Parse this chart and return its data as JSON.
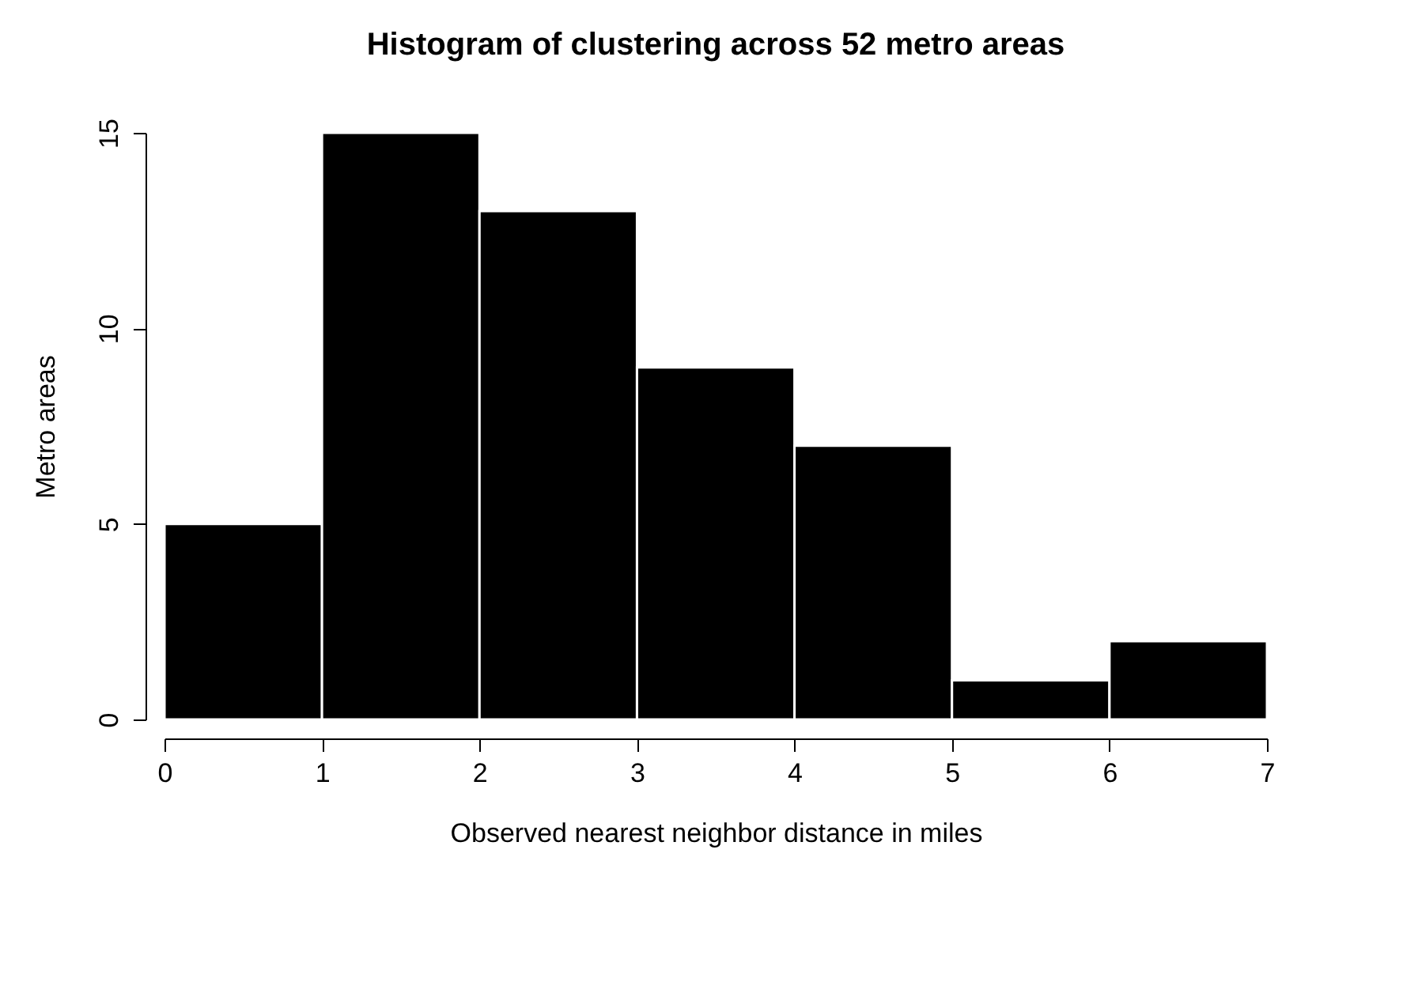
{
  "chart_data": {
    "type": "histogram",
    "title": "Histogram of clustering across 52 metro areas",
    "xlabel": "Observed nearest neighbor distance in miles",
    "ylabel": "Metro areas",
    "bins": [
      0,
      1,
      2,
      3,
      4,
      5,
      6,
      7
    ],
    "values": [
      5,
      15,
      13,
      9,
      7,
      1,
      2
    ],
    "color": "#000000",
    "xlim": [
      0,
      7
    ],
    "xticks": [
      0,
      1,
      2,
      3,
      4,
      5,
      6,
      7
    ],
    "ylim": [
      0,
      15
    ],
    "yticks": [
      0,
      5,
      10,
      15
    ],
    "grid": false
  }
}
